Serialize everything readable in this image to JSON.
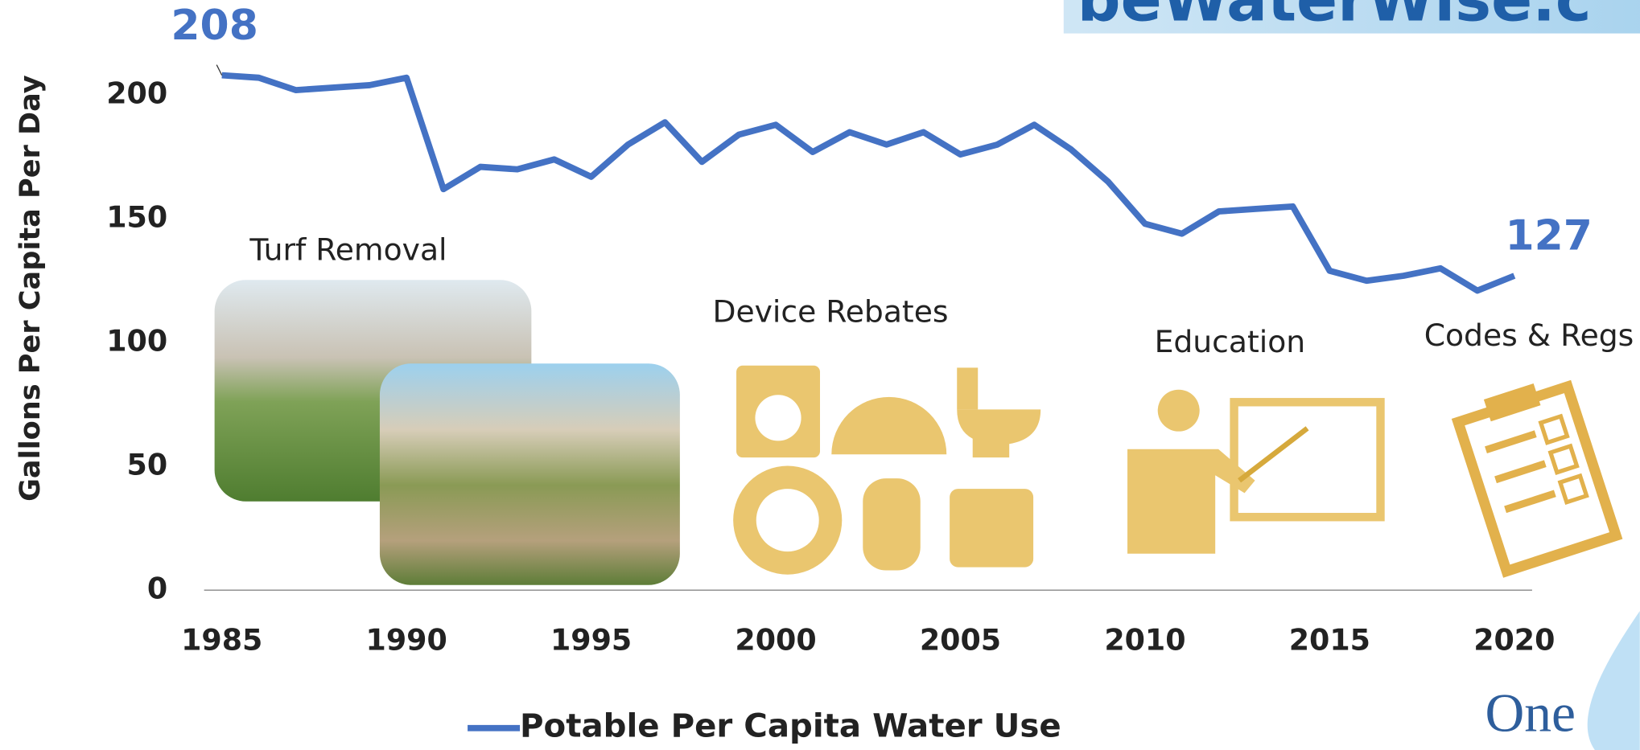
{
  "chart_data": {
    "type": "line",
    "y_label": "Gallons Per Capita Per Day",
    "x": [
      1985,
      1986,
      1987,
      1988,
      1989,
      1990,
      1991,
      1992,
      1993,
      1994,
      1995,
      1996,
      1997,
      1998,
      1999,
      2000,
      2001,
      2002,
      2003,
      2004,
      2005,
      2006,
      2007,
      2008,
      2009,
      2010,
      2011,
      2012,
      2013,
      2014,
      2015,
      2016,
      2017,
      2018,
      2019,
      2020
    ],
    "series": [
      {
        "name": "Potable Per Capita Water Use",
        "color": "#4472c4",
        "values": [
          208,
          207,
          202,
          203,
          204,
          207,
          162,
          171,
          170,
          174,
          167,
          180,
          189,
          173,
          184,
          188,
          177,
          185,
          180,
          185,
          176,
          180,
          188,
          178,
          165,
          148,
          144,
          153,
          154,
          155,
          129,
          125,
          127,
          130,
          121,
          127
        ]
      }
    ],
    "xlim": [
      1985,
      2020
    ],
    "xticks": [
      1985,
      1990,
      1995,
      2000,
      2005,
      2010,
      2015,
      2020
    ],
    "ylim": [
      0,
      220
    ],
    "yticks": [
      0,
      50,
      100,
      150,
      200
    ],
    "grid": false,
    "legend": "bottom",
    "annotations": [
      "Turf Removal",
      "Device Rebates",
      "Education",
      "Codes & Regs"
    ],
    "branding": {
      "top": "beWaterWise.c",
      "bottom": "One"
    }
  }
}
